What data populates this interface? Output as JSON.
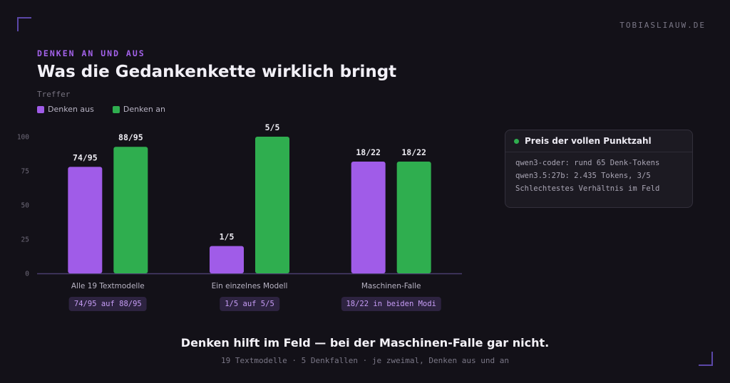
{
  "brand": "TOBIASLIAUW.DE",
  "kicker": "DENKEN AN UND AUS",
  "title": "Was die Gedankenkette wirklich bringt",
  "takeaway": "Denken hilft im Feld — bei der Maschinen-Falle gar nicht.",
  "footnote": "19 Textmodelle · 5 Denkfallen · je zweimal, Denken aus und an",
  "colors": {
    "off": "#a05ce8",
    "on": "#2fae4f",
    "accent": "#a362ea",
    "background": "#131118"
  },
  "chart_data": {
    "type": "bar",
    "ylabel": "Treffer",
    "ylim": [
      0,
      100
    ],
    "yticks": [
      0,
      25,
      50,
      75,
      100
    ],
    "legend_position": "top-left",
    "categories": [
      "Alle 19 Textmodelle",
      "Ein einzelnes Modell",
      "Maschinen-Falle"
    ],
    "series": [
      {
        "name": "Denken aus",
        "color": "#a05ce8",
        "values": [
          77.9,
          20,
          81.8
        ],
        "labels": [
          "74/95",
          "1/5",
          "18/22"
        ]
      },
      {
        "name": "Denken an",
        "color": "#2fae4f",
        "values": [
          92.6,
          100,
          81.8
        ],
        "labels": [
          "88/95",
          "5/5",
          "18/22"
        ]
      }
    ],
    "category_notes": [
      "74/95 auf 88/95",
      "1/5 auf 5/5",
      "18/22 in beiden Modi"
    ]
  },
  "card": {
    "title": "Preis der vollen Punktzahl",
    "lines": [
      "qwen3-coder: rund 65 Denk-Tokens",
      "qwen3.5:27b: 2.435 Tokens, 3/5",
      "Schlechtestes Verhältnis im Feld"
    ]
  }
}
